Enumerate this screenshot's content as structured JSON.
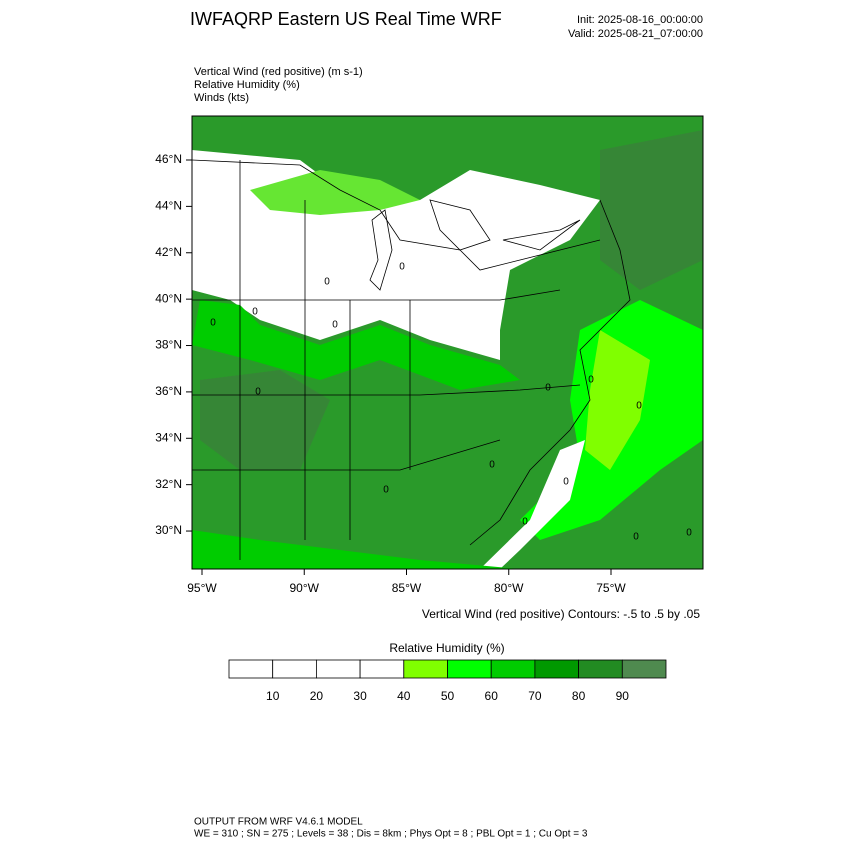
{
  "header": {
    "title": "IWFAQRP Eastern US Real Time WRF",
    "init": "Init: 2025-08-16_00:00:00",
    "valid": "Valid: 2025-08-21_07:00:00"
  },
  "fields": [
    "Vertical Wind (red positive)   (m s-1)",
    "Relative Humidity   (%)",
    "Winds   (kts)"
  ],
  "map": {
    "lon_ticks": [
      {
        "value": -95,
        "label": "95°W"
      },
      {
        "value": -90,
        "label": "90°W"
      },
      {
        "value": -85,
        "label": "85°W"
      },
      {
        "value": -80,
        "label": "80°W"
      },
      {
        "value": -75,
        "label": "75°W"
      }
    ],
    "lat_ticks": [
      {
        "value": 46,
        "label": "46°N"
      },
      {
        "value": 44,
        "label": "44°N"
      },
      {
        "value": 42,
        "label": "42°N"
      },
      {
        "value": 40,
        "label": "40°N"
      },
      {
        "value": 38,
        "label": "38°N"
      },
      {
        "value": 36,
        "label": "36°N"
      },
      {
        "value": 34,
        "label": "34°N"
      },
      {
        "value": 32,
        "label": "32°N"
      },
      {
        "value": 30,
        "label": "30°N"
      }
    ],
    "contour_label": "0",
    "contour_note": "Vertical Wind (red positive) Contours: -.5 to .5 by .05"
  },
  "colorbar": {
    "title": "Relative Humidity   (%)",
    "labels": [
      10,
      20,
      30,
      40,
      50,
      60,
      70,
      80,
      90
    ],
    "colors": [
      "#ffffff",
      "#ffffff",
      "#ffffff",
      "#ffffff",
      "#80ff00",
      "#00ff00",
      "#00cc00",
      "#009900",
      "#228b22",
      "#4f8a4f"
    ]
  },
  "footer": {
    "line1": "OUTPUT FROM WRF V4.6.1 MODEL",
    "line2": "WE = 310 ; SN = 275 ; Levels = 38 ; Dis = 8km ; Phys Opt = 8 ; PBL Opt = 1 ; Cu Opt = 3"
  }
}
